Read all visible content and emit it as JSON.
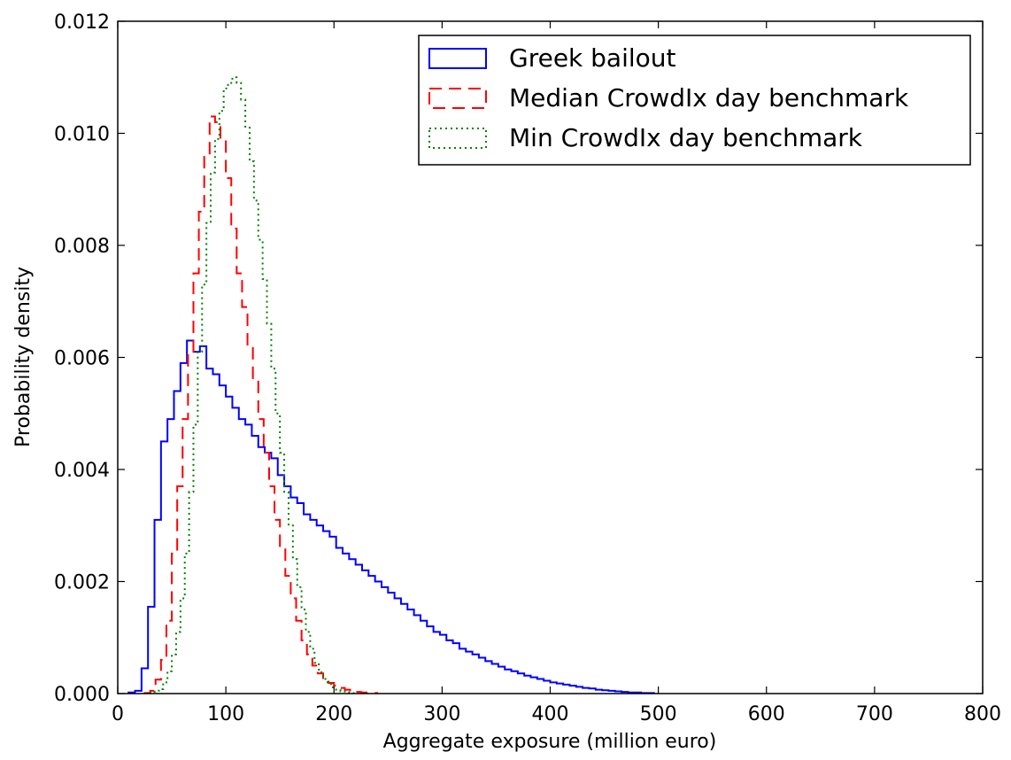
{
  "chart_data": {
    "type": "histogram",
    "xlabel": "Aggregate exposure (million euro)",
    "ylabel": "Probability density",
    "xlim": [
      0,
      800
    ],
    "ylim": [
      0,
      0.012
    ],
    "xticks": [
      "0",
      "100",
      "200",
      "300",
      "400",
      "500",
      "600",
      "700",
      "800"
    ],
    "yticks": [
      "0.000",
      "0.002",
      "0.004",
      "0.006",
      "0.008",
      "0.010",
      "0.012"
    ],
    "grid": false,
    "legend_position": "top-right",
    "series": [
      {
        "name": "Greek bailout",
        "color": "#0000ff",
        "style": "solid",
        "bin_width": 6,
        "x_start": 10,
        "values": [
          2e-05,
          5e-05,
          0.00045,
          0.00155,
          0.0031,
          0.0045,
          0.0049,
          0.0054,
          0.0059,
          0.0063,
          0.0061,
          0.0062,
          0.0058,
          0.0057,
          0.0055,
          0.0053,
          0.0051,
          0.0049,
          0.0048,
          0.0046,
          0.0044,
          0.0043,
          0.0042,
          0.0039,
          0.0037,
          0.0035,
          0.0034,
          0.0032,
          0.0031,
          0.003,
          0.0029,
          0.0028,
          0.0026,
          0.0025,
          0.0024,
          0.0023,
          0.0022,
          0.0021,
          0.002,
          0.0019,
          0.0018,
          0.0017,
          0.0016,
          0.0015,
          0.0014,
          0.0013,
          0.0012,
          0.0011,
          0.00105,
          0.00095,
          0.0009,
          0.0008,
          0.00075,
          0.0007,
          0.00064,
          0.00058,
          0.00053,
          0.00048,
          0.00043,
          0.0004,
          0.00036,
          0.00032,
          0.00029,
          0.00026,
          0.00023,
          0.0002,
          0.00018,
          0.00016,
          0.00014,
          0.00012,
          0.0001,
          9e-05,
          7e-05,
          6e-05,
          5e-05,
          4e-05,
          3e-05,
          2e-05,
          2e-05,
          1e-05,
          1e-05
        ]
      },
      {
        "name": "Median CrowdIx day benchmark",
        "color": "#ff0000",
        "style": "dashed",
        "bin_width": 5,
        "x_start": 25,
        "values": [
          1e-05,
          5e-05,
          0.00025,
          0.0006,
          0.0013,
          0.0025,
          0.0037,
          0.0049,
          0.0061,
          0.0075,
          0.0086,
          0.0096,
          0.0103,
          0.0102,
          0.0099,
          0.0092,
          0.0083,
          0.0075,
          0.0069,
          0.0062,
          0.0056,
          0.0049,
          0.0043,
          0.0037,
          0.0031,
          0.0026,
          0.0021,
          0.0017,
          0.0013,
          0.00095,
          0.0007,
          0.0005,
          0.00036,
          0.00026,
          0.00019,
          0.00014,
          0.0001,
          7e-05,
          5e-05,
          3e-05,
          2e-05,
          1e-05,
          1e-05
        ]
      },
      {
        "name": "Min CrowdIx day benchmark",
        "color": "#008000",
        "style": "dotted",
        "bin_width": 4,
        "x_start": 30,
        "values": [
          1e-05,
          3e-05,
          8e-05,
          0.0002,
          0.0004,
          0.0007,
          0.0011,
          0.0017,
          0.0025,
          0.0036,
          0.0048,
          0.0061,
          0.0073,
          0.0084,
          0.0093,
          0.0099,
          0.0104,
          0.0108,
          0.0109,
          0.011,
          0.0109,
          0.0106,
          0.0101,
          0.0095,
          0.0088,
          0.0081,
          0.0074,
          0.0066,
          0.0058,
          0.005,
          0.0043,
          0.0036,
          0.003,
          0.0024,
          0.0019,
          0.0015,
          0.0011,
          0.0008,
          0.00055,
          0.00038,
          0.00026,
          0.00017,
          0.00011,
          7e-05,
          4e-05,
          2e-05,
          1e-05
        ]
      }
    ]
  }
}
